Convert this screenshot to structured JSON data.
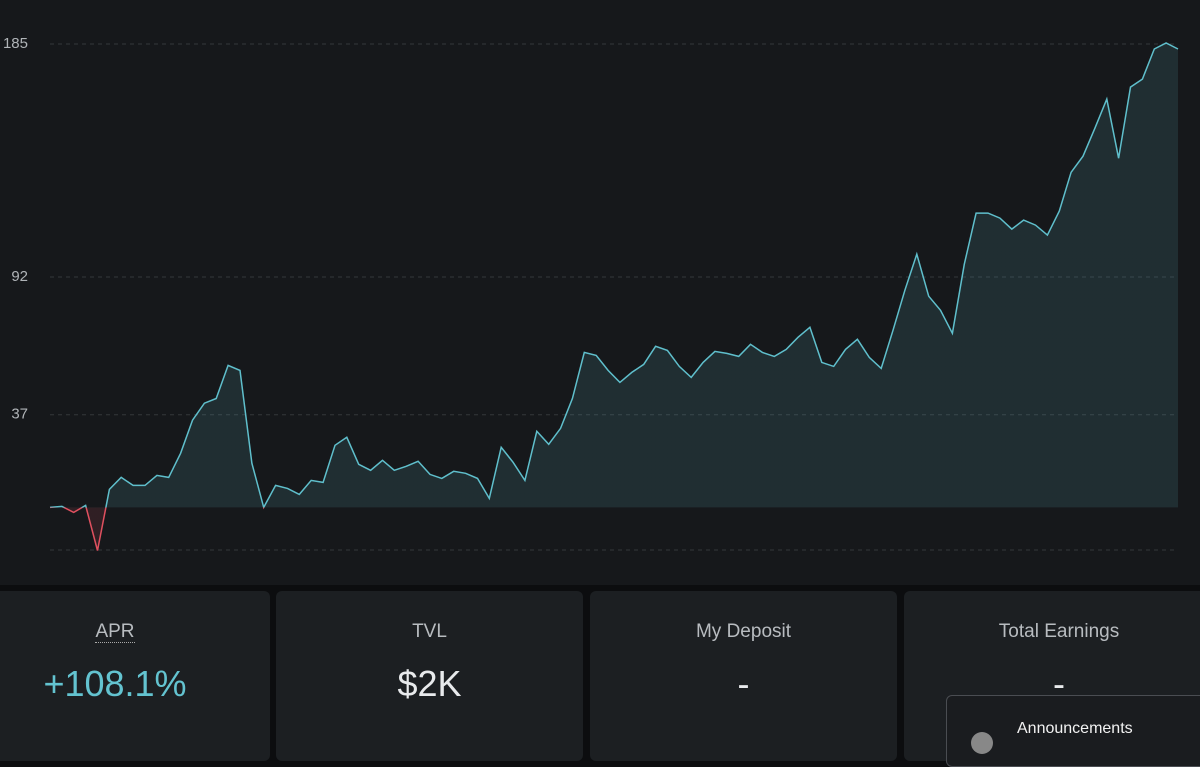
{
  "chart_data": {
    "type": "line",
    "values": [
      0,
      0.4,
      -2.0,
      0.8,
      -17.2,
      7.2,
      12.0,
      8.8,
      8.8,
      12.8,
      12.0,
      21.6,
      34.8,
      41.6,
      43.5,
      56.7,
      54.7,
      17.6,
      0,
      8.8,
      7.6,
      5.2,
      10.8,
      10.0,
      24.8,
      28.0,
      17.2,
      14.8,
      18.8,
      14.8,
      16.4,
      18.4,
      13.2,
      11.6,
      14.4,
      13.6,
      11.6,
      3.6,
      24.0,
      18.0,
      10.8,
      30.4,
      25.2,
      31.6,
      43.5,
      61.9,
      60.7,
      54.7,
      49.9,
      53.9,
      57.1,
      64.3,
      62.7,
      56.3,
      51.9,
      57.9,
      62.3,
      61.5,
      60.3,
      65.1,
      61.9,
      60.3,
      63.1,
      67.9,
      71.9,
      57.9,
      56.3,
      63.1,
      67.1,
      59.9,
      55.5,
      70.7,
      86.7,
      101.1,
      84.3,
      78.7,
      69.5,
      97.1,
      117.5,
      117.5,
      115.5,
      111.1,
      114.7,
      112.7,
      108.7,
      118.3,
      133.8,
      140.2,
      151.4,
      163.0,
      139.4,
      167.8,
      171.0,
      183.0,
      185.4,
      183.0
    ],
    "color": "#5fbfcc",
    "negative_color": "#e0505f",
    "ylim": [
      -17,
      185
    ],
    "yticks": [
      185,
      92,
      37
    ],
    "grid": true
  },
  "cards": [
    {
      "label": "APR",
      "value": "+108.1%"
    },
    {
      "label": "TVL",
      "value": "$2K"
    },
    {
      "label": "My Deposit",
      "value": "-"
    },
    {
      "label": "Total Earnings",
      "value": "-"
    }
  ],
  "announcements": {
    "title": "Announcements"
  }
}
